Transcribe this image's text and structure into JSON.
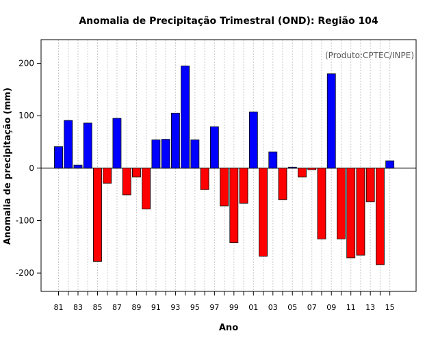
{
  "chart_data": {
    "type": "bar",
    "title": "Anomalia de Precipitação Trimestral (OND): Região 104",
    "xlabel": "Ano",
    "ylabel": "Anomalia de precipitação (mm)",
    "credit": "(Produto:CPTEC/INPE)",
    "ylim": [
      -235,
      245
    ],
    "yticks": [
      -200,
      -100,
      0,
      100,
      200
    ],
    "grid": true,
    "positive_color": "#0000ff",
    "negative_color": "#ff0000",
    "categories": [
      "81",
      "82",
      "83",
      "84",
      "85",
      "86",
      "87",
      "88",
      "89",
      "90",
      "91",
      "92",
      "93",
      "94",
      "95",
      "96",
      "97",
      "98",
      "99",
      "00",
      "01",
      "02",
      "03",
      "04",
      "05",
      "06",
      "07",
      "08",
      "09",
      "10",
      "11",
      "12",
      "13",
      "14",
      "15"
    ],
    "xtick_labels": [
      "81",
      "83",
      "85",
      "87",
      "89",
      "91",
      "93",
      "95",
      "97",
      "99",
      "01",
      "03",
      "05",
      "07",
      "09",
      "11",
      "13",
      "15"
    ],
    "values": [
      41,
      91,
      6,
      86,
      -178,
      -29,
      95,
      -51,
      -17,
      -78,
      54,
      55,
      105,
      195,
      54,
      -41,
      79,
      -72,
      -142,
      -67,
      107,
      -168,
      31,
      -60,
      2,
      -17,
      -3,
      -135,
      180,
      -135,
      -171,
      -166,
      -64,
      -184,
      14
    ]
  }
}
